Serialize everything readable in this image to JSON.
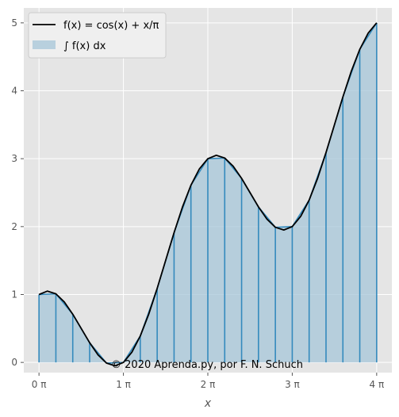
{
  "chart_data": {
    "type": "line",
    "title": "",
    "xlabel": "x",
    "ylabel": "",
    "xlim_over_pi": [
      -0.18,
      4.18
    ],
    "ylim": [
      -0.15,
      5.22
    ],
    "x_ticks": [
      {
        "value_over_pi": 0,
        "label": "0 π"
      },
      {
        "value_over_pi": 1,
        "label": "1 π"
      },
      {
        "value_over_pi": 2,
        "label": "2 π"
      },
      {
        "value_over_pi": 3,
        "label": "3 π"
      },
      {
        "value_over_pi": 4,
        "label": "4 π"
      }
    ],
    "y_ticks": [
      0,
      1,
      2,
      3,
      4,
      5
    ],
    "grid": true,
    "legend_position": "upper-left",
    "series": [
      {
        "name": "f(x) = cos(x) + x/π",
        "kind": "line",
        "color": "#000000",
        "x_over_pi": [
          0.0,
          0.1,
          0.2,
          0.3,
          0.4,
          0.5,
          0.6,
          0.7,
          0.8,
          0.9,
          1.0,
          1.1,
          1.2,
          1.3,
          1.4,
          1.5,
          1.6,
          1.7,
          1.8,
          1.9,
          2.0,
          2.1,
          2.2,
          2.3,
          2.4,
          2.5,
          2.6,
          2.7,
          2.8,
          2.9,
          3.0,
          3.1,
          3.2,
          3.3,
          3.4,
          3.5,
          3.6,
          3.7,
          3.8,
          3.9,
          4.0
        ],
        "y": [
          1.0,
          1.05,
          1.01,
          0.89,
          0.71,
          0.5,
          0.29,
          0.11,
          -0.01,
          -0.05,
          0.0,
          0.15,
          0.39,
          0.71,
          1.09,
          1.5,
          1.91,
          2.29,
          2.61,
          2.85,
          3.0,
          3.05,
          3.01,
          2.89,
          2.71,
          2.5,
          2.29,
          2.11,
          1.99,
          1.95,
          2.0,
          2.15,
          2.39,
          2.71,
          3.09,
          3.5,
          3.91,
          4.29,
          4.61,
          4.85,
          5.0
        ]
      },
      {
        "name": "∫ f(x) dx",
        "kind": "step-fill",
        "color": "#a6c5d8",
        "edge_color": "#348abd",
        "x_over_pi": [
          0.0,
          0.2,
          0.4,
          0.6,
          0.8,
          1.0,
          1.2,
          1.4,
          1.6,
          1.8,
          2.0,
          2.2,
          2.4,
          2.6,
          2.8,
          3.0,
          3.2,
          3.4,
          3.6,
          3.8,
          4.0
        ],
        "y": [
          1.0,
          1.01,
          0.71,
          0.29,
          -0.01,
          0.0,
          0.39,
          1.09,
          1.91,
          2.61,
          3.0,
          3.01,
          2.71,
          2.29,
          1.99,
          2.0,
          2.39,
          3.09,
          3.91,
          4.61,
          5.0
        ]
      }
    ],
    "legend": [
      {
        "label": "f(x) = cos(x) + x/π",
        "marker": "line",
        "color": "#000000"
      },
      {
        "label": "∫ f(x) dx",
        "marker": "patch",
        "color": "#a6c5d8"
      }
    ],
    "annotation": "© 2020 Aprenda.py, por F. N. Schuch",
    "colors": {
      "panel_background": "#e5e5e5",
      "grid": "#ffffff",
      "fill": "#a6c5d8",
      "edge": "#348abd",
      "curve": "#000000",
      "legend_background": "#efefef"
    }
  }
}
